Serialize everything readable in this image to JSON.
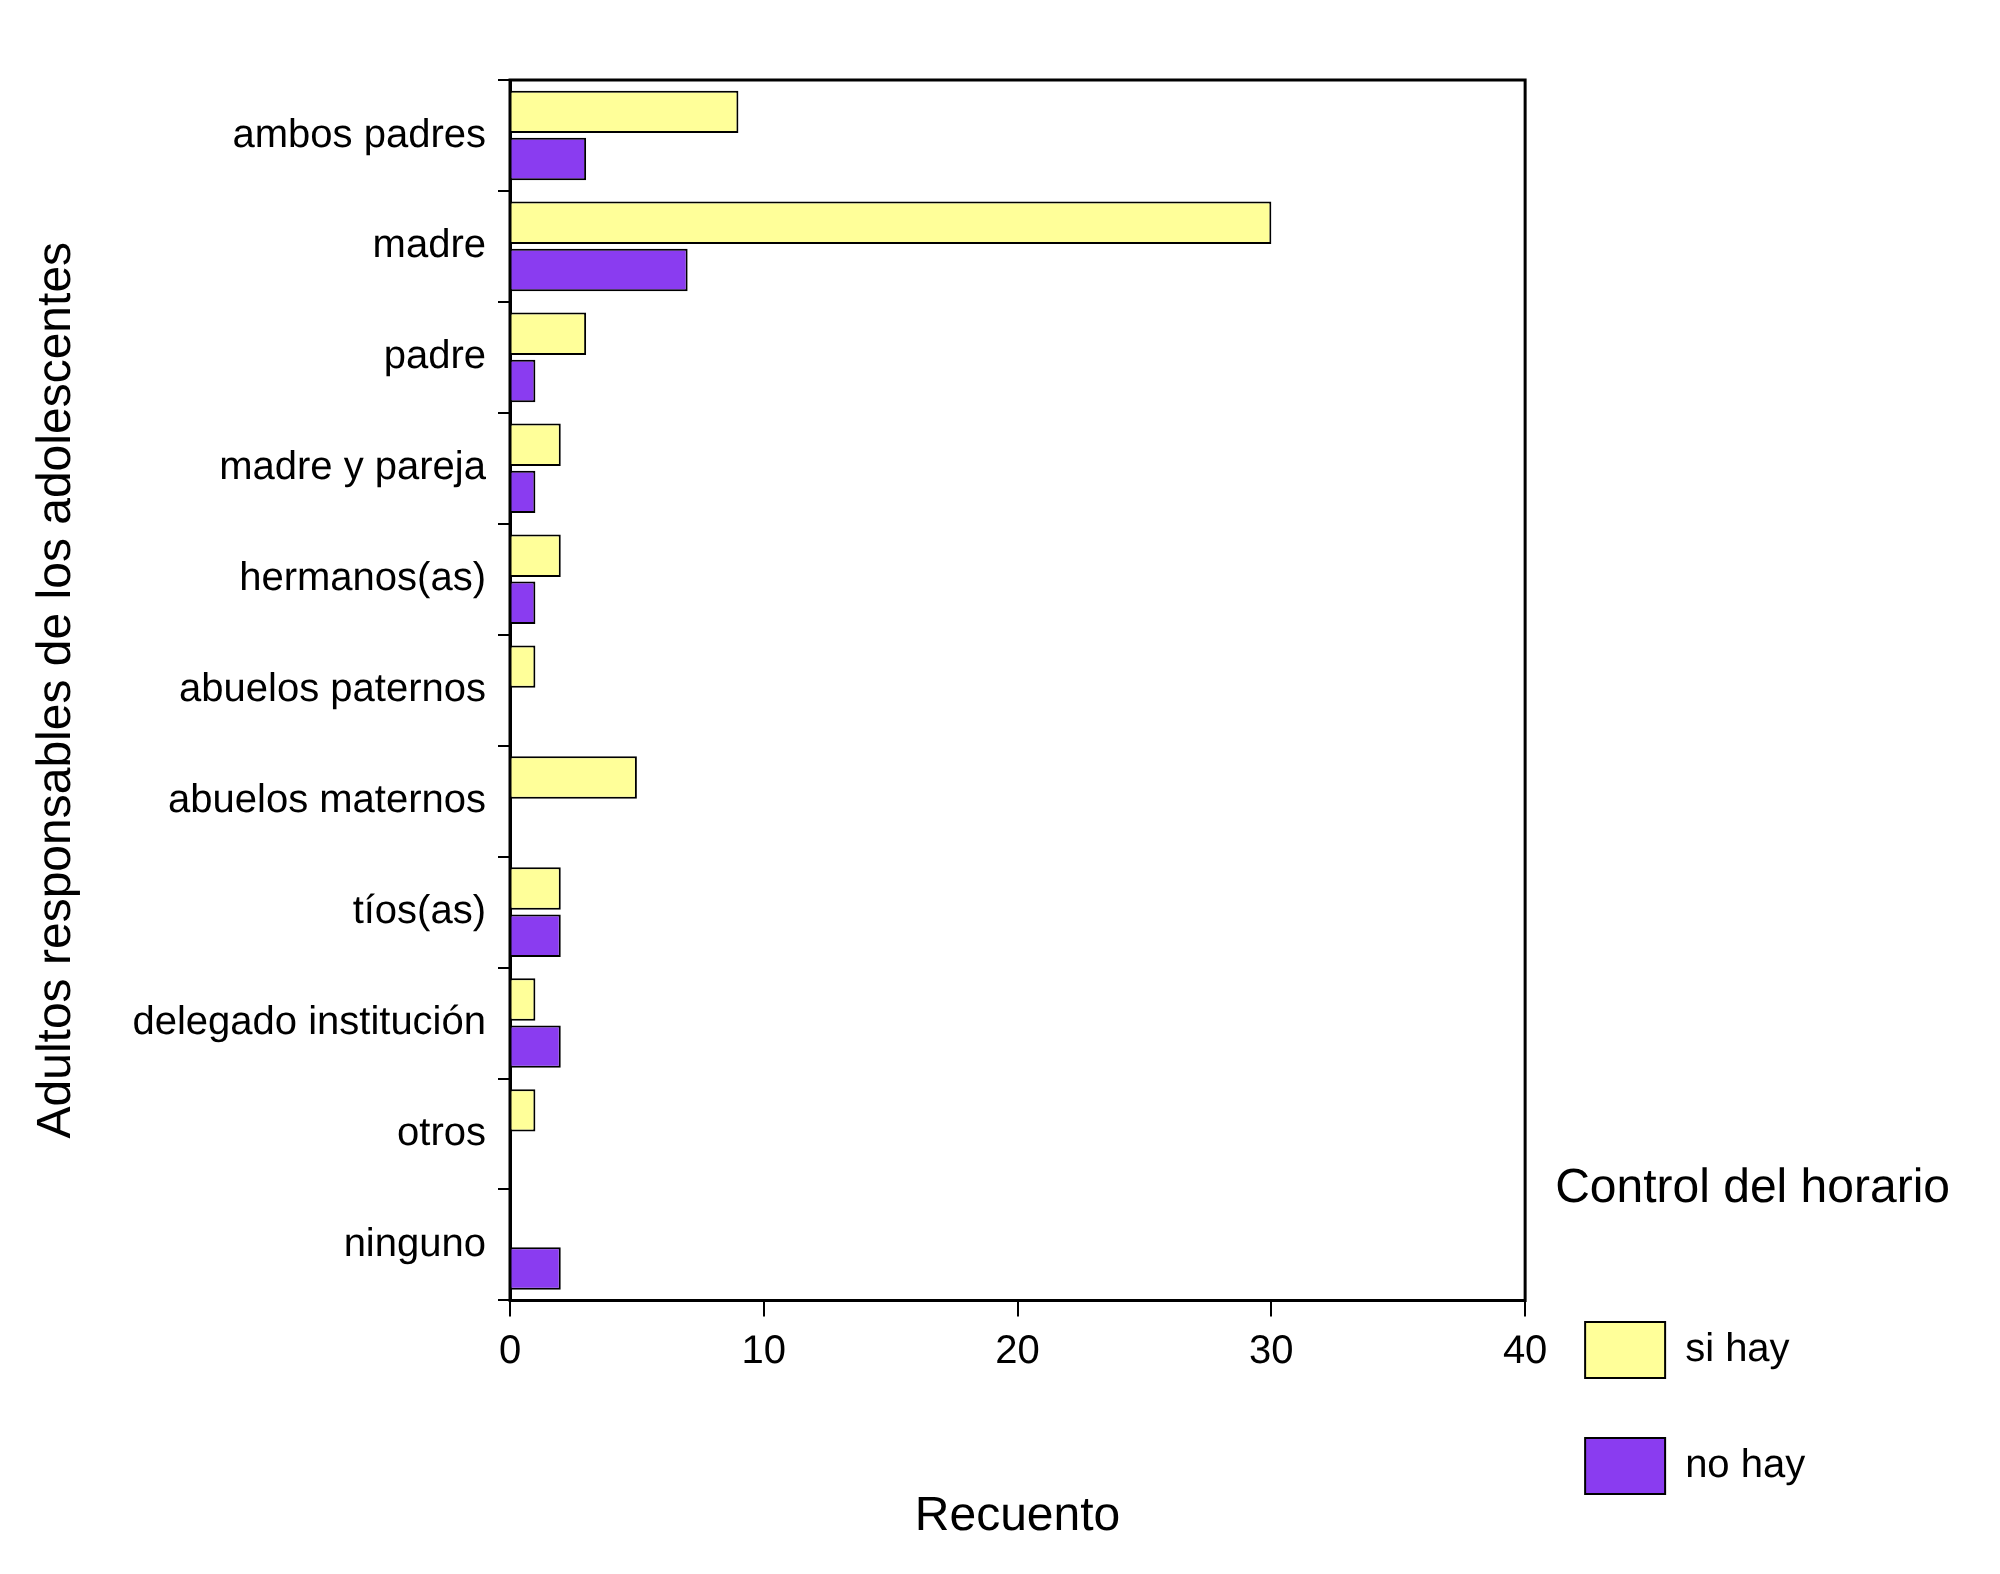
{
  "chart_data": {
    "type": "bar",
    "orientation": "horizontal",
    "xlabel": "Recuento",
    "ylabel": "Adultos responsables de los adolescentes",
    "legend_title": "Control del horario",
    "legend": "right",
    "categories": [
      "ambos padres",
      "madre",
      "padre",
      "madre y pareja",
      "hermanos(as)",
      "abuelos paternos",
      "abuelos maternos",
      "tíos(as)",
      "delegado institución",
      "otros",
      "ninguno"
    ],
    "series": [
      {
        "name": "si hay",
        "color": "#ffff99",
        "values": [
          9,
          30,
          3,
          2,
          2,
          1,
          5,
          2,
          1,
          1,
          null
        ]
      },
      {
        "name": "no hay",
        "color": "#8a3cf0",
        "values": [
          3,
          7,
          1,
          1,
          1,
          null,
          null,
          2,
          2,
          null,
          2
        ]
      }
    ],
    "xlim": [
      0,
      40
    ],
    "xticks": [
      0,
      10,
      20,
      30,
      40
    ],
    "grid": false
  }
}
